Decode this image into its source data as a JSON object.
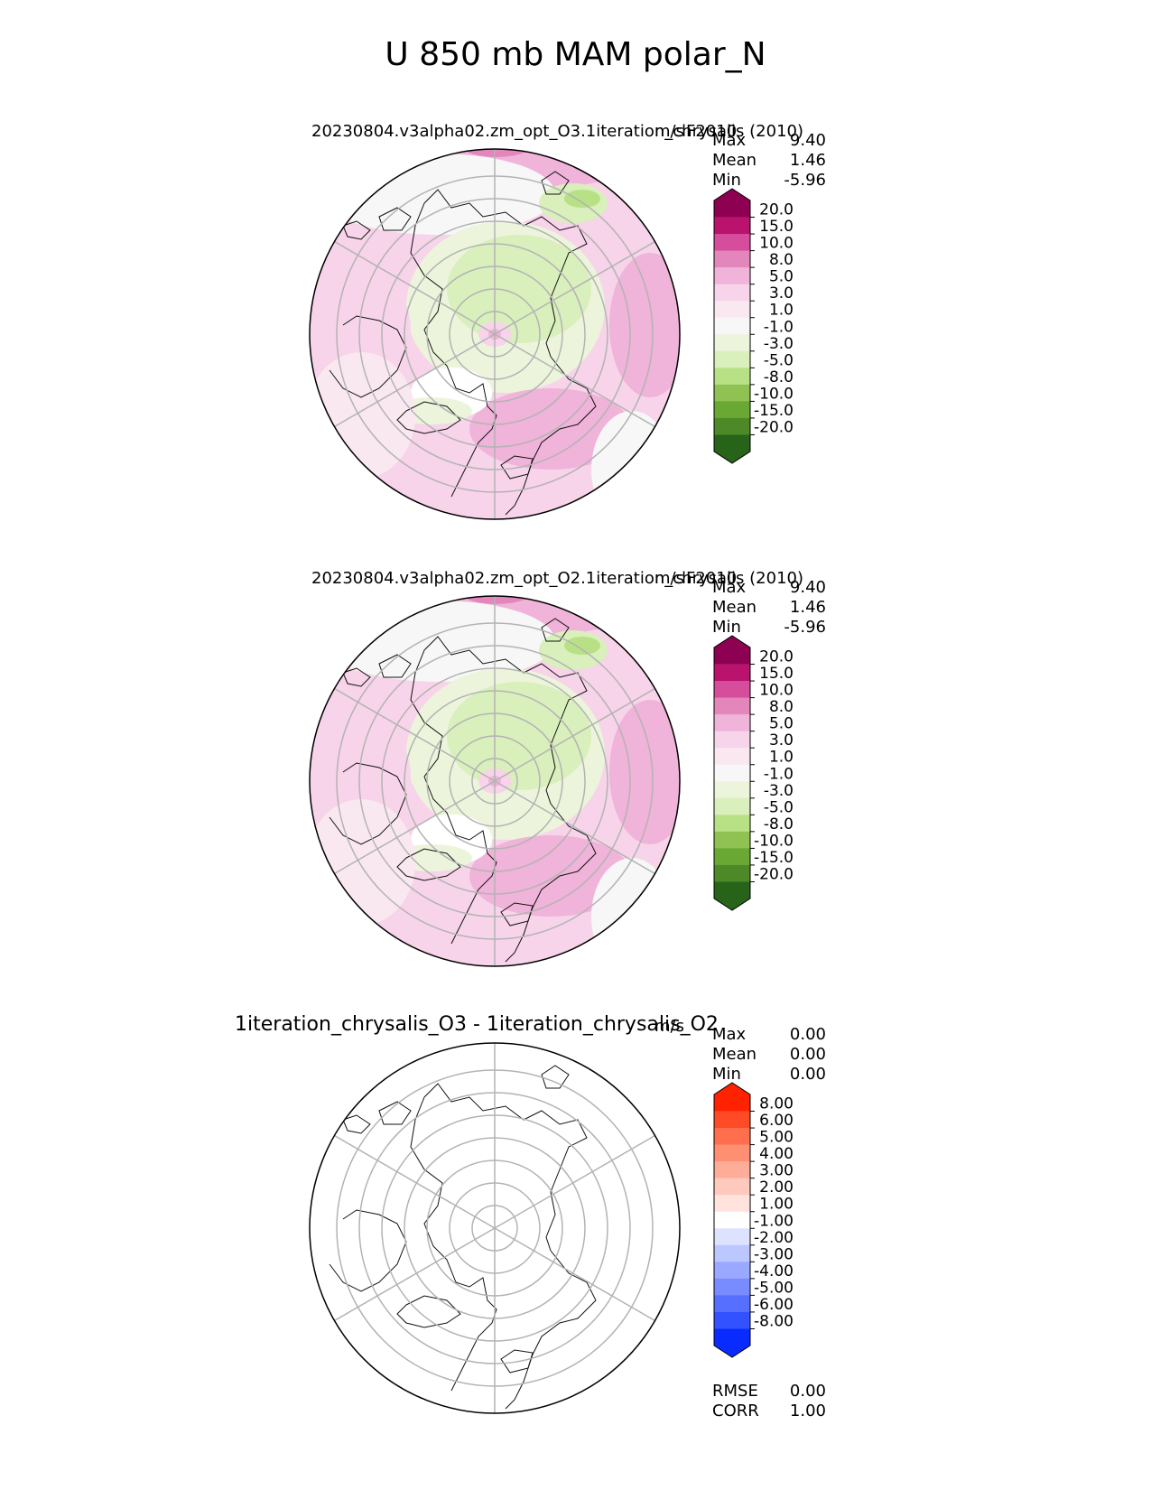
{
  "title": "U 850 mb MAM polar_N",
  "chart_data": [
    {
      "type": "heatmap",
      "projection": "north-polar-stereographic",
      "title": "20230804.v3alpha02.zm_opt_O3.1iteration_chrysalis (2010)",
      "title_right": "F2010",
      "units": "m/s",
      "stats": [
        {
          "label": "Max",
          "value": "9.40"
        },
        {
          "label": "Mean",
          "value": "1.46"
        },
        {
          "label": "Min",
          "value": "-5.96"
        }
      ],
      "colorbar": {
        "levels": [
          "20.0",
          "15.0",
          "10.0",
          "8.0",
          "5.0",
          "3.0",
          "1.0",
          "-1.0",
          "-3.0",
          "-5.0",
          "-8.0",
          "-10.0",
          "-15.0",
          "-20.0"
        ],
        "colors": [
          "#8e0152",
          "#b9136e",
          "#d54d9b",
          "#e386bb",
          "#f0b3d9",
          "#f7d4e9",
          "#fae8f1",
          "#f7f7f7",
          "#ecf5db",
          "#d9efbc",
          "#b8e186",
          "#8fc252",
          "#6aa834",
          "#4d8a27",
          "#276419"
        ]
      }
    },
    {
      "type": "heatmap",
      "projection": "north-polar-stereographic",
      "title": "20230804.v3alpha02.zm_opt_O2.1iteration_chrysalis (2010)",
      "title_right": "F2010",
      "units": "m/s",
      "stats": [
        {
          "label": "Max",
          "value": "9.40"
        },
        {
          "label": "Mean",
          "value": "1.46"
        },
        {
          "label": "Min",
          "value": "-5.96"
        }
      ],
      "colorbar": {
        "levels": [
          "20.0",
          "15.0",
          "10.0",
          "8.0",
          "5.0",
          "3.0",
          "1.0",
          "-1.0",
          "-3.0",
          "-5.0",
          "-8.0",
          "-10.0",
          "-15.0",
          "-20.0"
        ],
        "colors": [
          "#8e0152",
          "#b9136e",
          "#d54d9b",
          "#e386bb",
          "#f0b3d9",
          "#f7d4e9",
          "#fae8f1",
          "#f7f7f7",
          "#ecf5db",
          "#d9efbc",
          "#b8e186",
          "#8fc252",
          "#6aa834",
          "#4d8a27",
          "#276419"
        ]
      }
    },
    {
      "type": "heatmap",
      "projection": "north-polar-stereographic",
      "title": "1iteration_chrysalis_O3 - 1iteration_chrysalis_O2",
      "units": "m/s",
      "stats": [
        {
          "label": "Max",
          "value": "0.00"
        },
        {
          "label": "Mean",
          "value": "0.00"
        },
        {
          "label": "Min",
          "value": "0.00"
        }
      ],
      "colorbar": {
        "levels": [
          "8.00",
          "6.00",
          "5.00",
          "4.00",
          "3.00",
          "2.00",
          "1.00",
          "-1.00",
          "-2.00",
          "-3.00",
          "-4.00",
          "-5.00",
          "-6.00",
          "-8.00"
        ],
        "colors": [
          "#ff2200",
          "#ff4a26",
          "#ff6e4d",
          "#ff8f73",
          "#ffad99",
          "#ffc9bd",
          "#ffe3dc",
          "#ffffff",
          "#dde2ff",
          "#bcc6ff",
          "#9aa9ff",
          "#788cff",
          "#566fff",
          "#3352ff",
          "#0a2bff"
        ]
      },
      "metrics": [
        {
          "label": "RMSE",
          "value": "0.00"
        },
        {
          "label": "CORR",
          "value": "1.00"
        }
      ]
    }
  ]
}
